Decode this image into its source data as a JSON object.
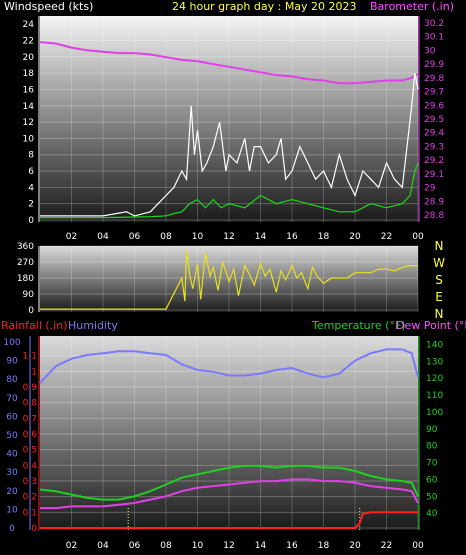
{
  "header": {
    "left": "Windspeed (kts)",
    "center": "24 hour graph day : May 20 2023",
    "right": "Barometer (.in)"
  },
  "mid_header": {
    "left": "Rainfall (.in)",
    "humidity": "Humidity",
    "temp": "Temperature (°F)",
    "dew": "Dew Point (°F)"
  },
  "colors": {
    "wind_avg": "#18d818",
    "wind_gust": "#ffffff",
    "barometer": "#e040e8",
    "direction": "#e8e020",
    "rain": "#ff2020",
    "humidity": "#7a7aff",
    "temperature": "#20d020",
    "dew": "#e040e8",
    "left_axis": "#7a7aff",
    "right_axis": "#20d020"
  },
  "chart_data": [
    {
      "type": "line",
      "title": "24 hour graph day : May 20 2023",
      "ylabel": "Windspeed (kts)",
      "y2label": "Barometer (.in)",
      "xticks": [
        "02",
        "04",
        "06",
        "08",
        "10",
        "12",
        "14",
        "16",
        "18",
        "20",
        "22",
        "00"
      ],
      "ylim": [
        0,
        25
      ],
      "y2lim": [
        28.75,
        30.25
      ],
      "yticks": [
        "0",
        "2",
        "4",
        "6",
        "8",
        "10",
        "12",
        "14",
        "16",
        "18",
        "20",
        "22",
        "24"
      ],
      "y2ticks": [
        "28.8",
        "28.9",
        "29",
        "29.1",
        "29.2",
        "29.3",
        "29.4",
        "29.5",
        "29.6",
        "29.7",
        "29.8",
        "29.9",
        "30",
        "30.1",
        "30.2"
      ],
      "series": [
        {
          "name": "Barometer",
          "axis": "right",
          "x": [
            0,
            1,
            2,
            3,
            4,
            5,
            6,
            7,
            8,
            9,
            10,
            11,
            12,
            13,
            14,
            15,
            16,
            17,
            18,
            19,
            20,
            21,
            22,
            23,
            23.6,
            24
          ],
          "values": [
            30.06,
            30.05,
            30.02,
            30.0,
            29.99,
            29.98,
            29.98,
            29.97,
            29.95,
            29.93,
            29.92,
            29.9,
            29.88,
            29.86,
            29.84,
            29.82,
            29.81,
            29.79,
            29.78,
            29.76,
            29.76,
            29.77,
            29.78,
            29.78,
            29.8,
            29.83
          ]
        },
        {
          "name": "Gust",
          "axis": "left",
          "x": [
            0,
            2,
            4,
            5.5,
            6,
            7,
            7.5,
            8,
            8.5,
            9,
            9.3,
            9.6,
            9.8,
            10,
            10.3,
            10.6,
            11,
            11.4,
            11.8,
            12,
            12.5,
            13,
            13.3,
            13.6,
            14,
            14.5,
            15,
            15.3,
            15.6,
            16,
            16.5,
            17,
            17.5,
            18,
            18.5,
            19,
            19.5,
            20,
            20.5,
            21,
            21.5,
            22,
            22.5,
            23,
            23.3,
            23.6,
            23.8,
            24
          ],
          "values": [
            0.5,
            0.5,
            0.5,
            1,
            0.5,
            1,
            2,
            3,
            4,
            6,
            5,
            14,
            8,
            11,
            6,
            7,
            9,
            12,
            6,
            8,
            7,
            10,
            6,
            9,
            9,
            7,
            8,
            10,
            5,
            6,
            9,
            7,
            5,
            6,
            4,
            8,
            5,
            3,
            6,
            5,
            4,
            7,
            5,
            4,
            9,
            14,
            18,
            16
          ]
        },
        {
          "name": "Average",
          "axis": "left",
          "x": [
            0,
            4,
            7,
            8,
            8.5,
            9,
            9.5,
            10,
            10.5,
            11,
            11.5,
            12,
            13,
            14,
            15,
            16,
            17,
            18,
            19,
            20,
            21,
            22,
            23,
            23.5,
            23.8,
            24
          ],
          "values": [
            0.3,
            0.3,
            0.4,
            0.5,
            0.8,
            1,
            2,
            2.5,
            1.5,
            2.5,
            1.5,
            2,
            1.5,
            3,
            2,
            2.5,
            2,
            1.5,
            1,
            1,
            2,
            1.5,
            2,
            3,
            6,
            7
          ]
        }
      ]
    },
    {
      "type": "line",
      "ylabel": "Wind direction",
      "ylim": [
        0,
        360
      ],
      "yticks": [
        "0",
        "90",
        "180",
        "270",
        "360"
      ],
      "compass": [
        "N",
        "W",
        "S",
        "E",
        "N"
      ],
      "series": [
        {
          "name": "Direction",
          "x": [
            0,
            4,
            8,
            9,
            9.2,
            9.3,
            9.5,
            9.7,
            10,
            10.2,
            10.5,
            10.8,
            11,
            11.3,
            11.6,
            12,
            12.3,
            12.6,
            13,
            13.3,
            13.6,
            14,
            14.3,
            14.6,
            15,
            15.3,
            15.6,
            16,
            16.3,
            16.6,
            17,
            17.3,
            17.6,
            18,
            18.5,
            19,
            19.5,
            20,
            20.5,
            21,
            21.5,
            22,
            22.5,
            23,
            23.5,
            24
          ],
          "values": [
            5,
            5,
            5,
            180,
            50,
            340,
            200,
            120,
            260,
            60,
            320,
            190,
            240,
            110,
            270,
            160,
            230,
            80,
            250,
            200,
            140,
            260,
            190,
            230,
            100,
            220,
            170,
            250,
            180,
            210,
            120,
            240,
            190,
            150,
            180,
            180,
            180,
            210,
            210,
            210,
            230,
            230,
            220,
            240,
            250,
            250
          ]
        }
      ]
    },
    {
      "type": "line",
      "ylabel": "Rainfall (.in)",
      "ylabel2": "Humidity",
      "y2label": "Temperature (°F)",
      "y3label": "Dew Point (°F)",
      "ylim": [
        0,
        1.2
      ],
      "yticks": [
        "0",
        "0.1",
        "0.2",
        "0.3",
        "0.4",
        "0.5",
        "0.6",
        "0.7",
        "0.8",
        "0.9",
        "1",
        "1.1"
      ],
      "humidity_ticks": [
        "0",
        "10",
        "20",
        "30",
        "40",
        "50",
        "60",
        "70",
        "80",
        "90",
        "100"
      ],
      "y2lim": [
        30,
        145
      ],
      "y2ticks": [
        "40",
        "50",
        "60",
        "70",
        "80",
        "90",
        "100",
        "110",
        "120",
        "130",
        "140"
      ],
      "xticks": [
        "02",
        "04",
        "06",
        "08",
        "10",
        "12",
        "14",
        "16",
        "18",
        "20",
        "22",
        "00"
      ],
      "series": [
        {
          "name": "Humidity",
          "axis": "humidity",
          "x": [
            0,
            1,
            2,
            3,
            4,
            5,
            6,
            7,
            8,
            9,
            10,
            11,
            12,
            13,
            14,
            15,
            16,
            17,
            18,
            19,
            20,
            21,
            22,
            23,
            23.6,
            24
          ],
          "values": [
            78,
            87,
            91,
            93,
            94,
            95,
            95,
            94,
            93,
            88,
            85,
            84,
            82,
            82,
            83,
            85,
            86,
            83,
            81,
            83,
            90,
            94,
            96,
            96,
            94,
            81
          ]
        },
        {
          "name": "Temperature",
          "axis": "temp",
          "x": [
            0,
            1,
            2,
            3,
            4,
            5,
            6,
            7,
            8,
            9,
            10,
            11,
            12,
            13,
            14,
            15,
            16,
            17,
            18,
            19,
            20,
            21,
            22,
            23,
            23.6,
            24
          ],
          "values": [
            54,
            53,
            51,
            49,
            48,
            48,
            50,
            53,
            57,
            61,
            63,
            65,
            67,
            68,
            68,
            67,
            68,
            68,
            67,
            67,
            65,
            62,
            60,
            59,
            58,
            50
          ]
        },
        {
          "name": "Dew Point",
          "axis": "temp",
          "x": [
            0,
            1,
            2,
            3,
            4,
            5,
            6,
            7,
            8,
            9,
            10,
            11,
            12,
            13,
            14,
            15,
            16,
            17,
            18,
            19,
            20,
            21,
            22,
            23,
            23.6,
            24
          ],
          "values": [
            43,
            43,
            44,
            44,
            44,
            45,
            46,
            48,
            50,
            53,
            55,
            56,
            57,
            58,
            59,
            59,
            60,
            60,
            59,
            59,
            58,
            56,
            55,
            54,
            53,
            46
          ]
        },
        {
          "name": "Rainfall",
          "axis": "rain",
          "x": [
            0,
            20,
            20.3,
            20.5,
            21,
            24
          ],
          "values": [
            0,
            0,
            0.03,
            0.09,
            0.1,
            0.1
          ]
        }
      ]
    }
  ]
}
